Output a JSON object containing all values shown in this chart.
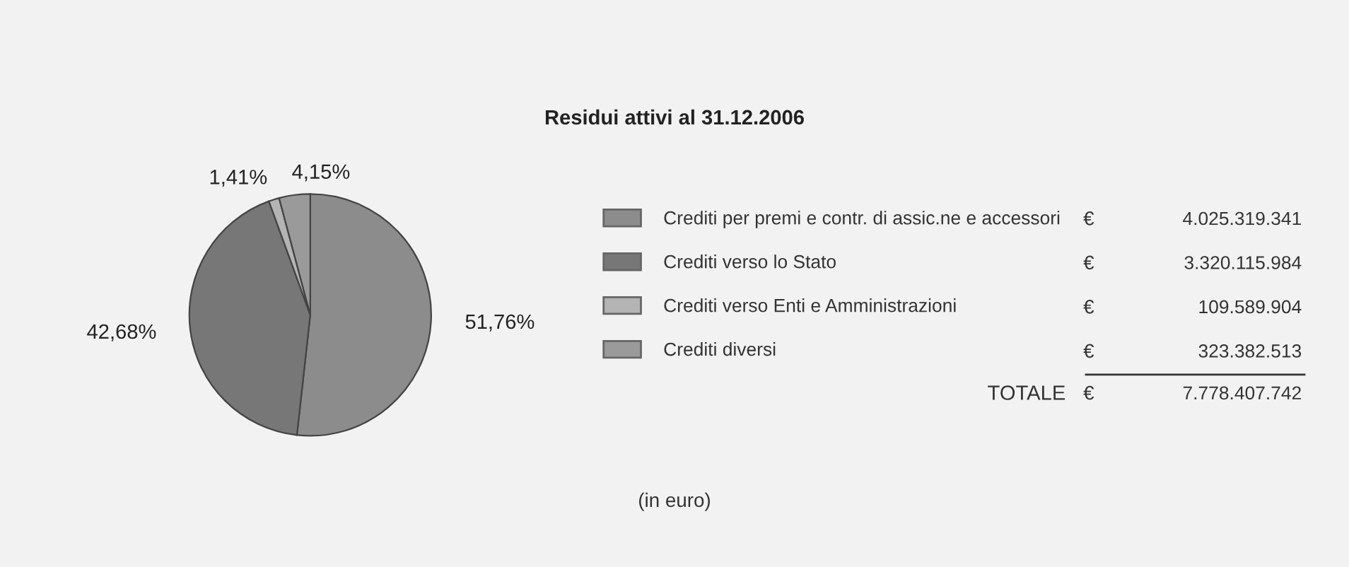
{
  "chart_data": {
    "type": "pie",
    "title": "Residui attivi al 31.12.2006",
    "categories": [
      "Crediti per premi e contr. di assic.ne e accessori",
      "Crediti verso lo Stato",
      "Crediti verso Enti e Amministrazioni",
      "Crediti diversi"
    ],
    "values": [
      51.76,
      42.68,
      1.41,
      4.15
    ],
    "value_labels": [
      "51,76%",
      "42,68%",
      "1,41%",
      "4,15%"
    ],
    "colors": [
      "#8c8c8c",
      "#777777",
      "#b4b4b4",
      "#9a9a9a"
    ],
    "legend": "right",
    "annotations": [
      "€",
      "4.025.319.341",
      "€",
      "3.320.115.984",
      "€",
      "109.589.904",
      "€",
      "323.382.513",
      "TOTALE",
      "€",
      "7.778.407.742",
      "(in euro)"
    ]
  }
}
